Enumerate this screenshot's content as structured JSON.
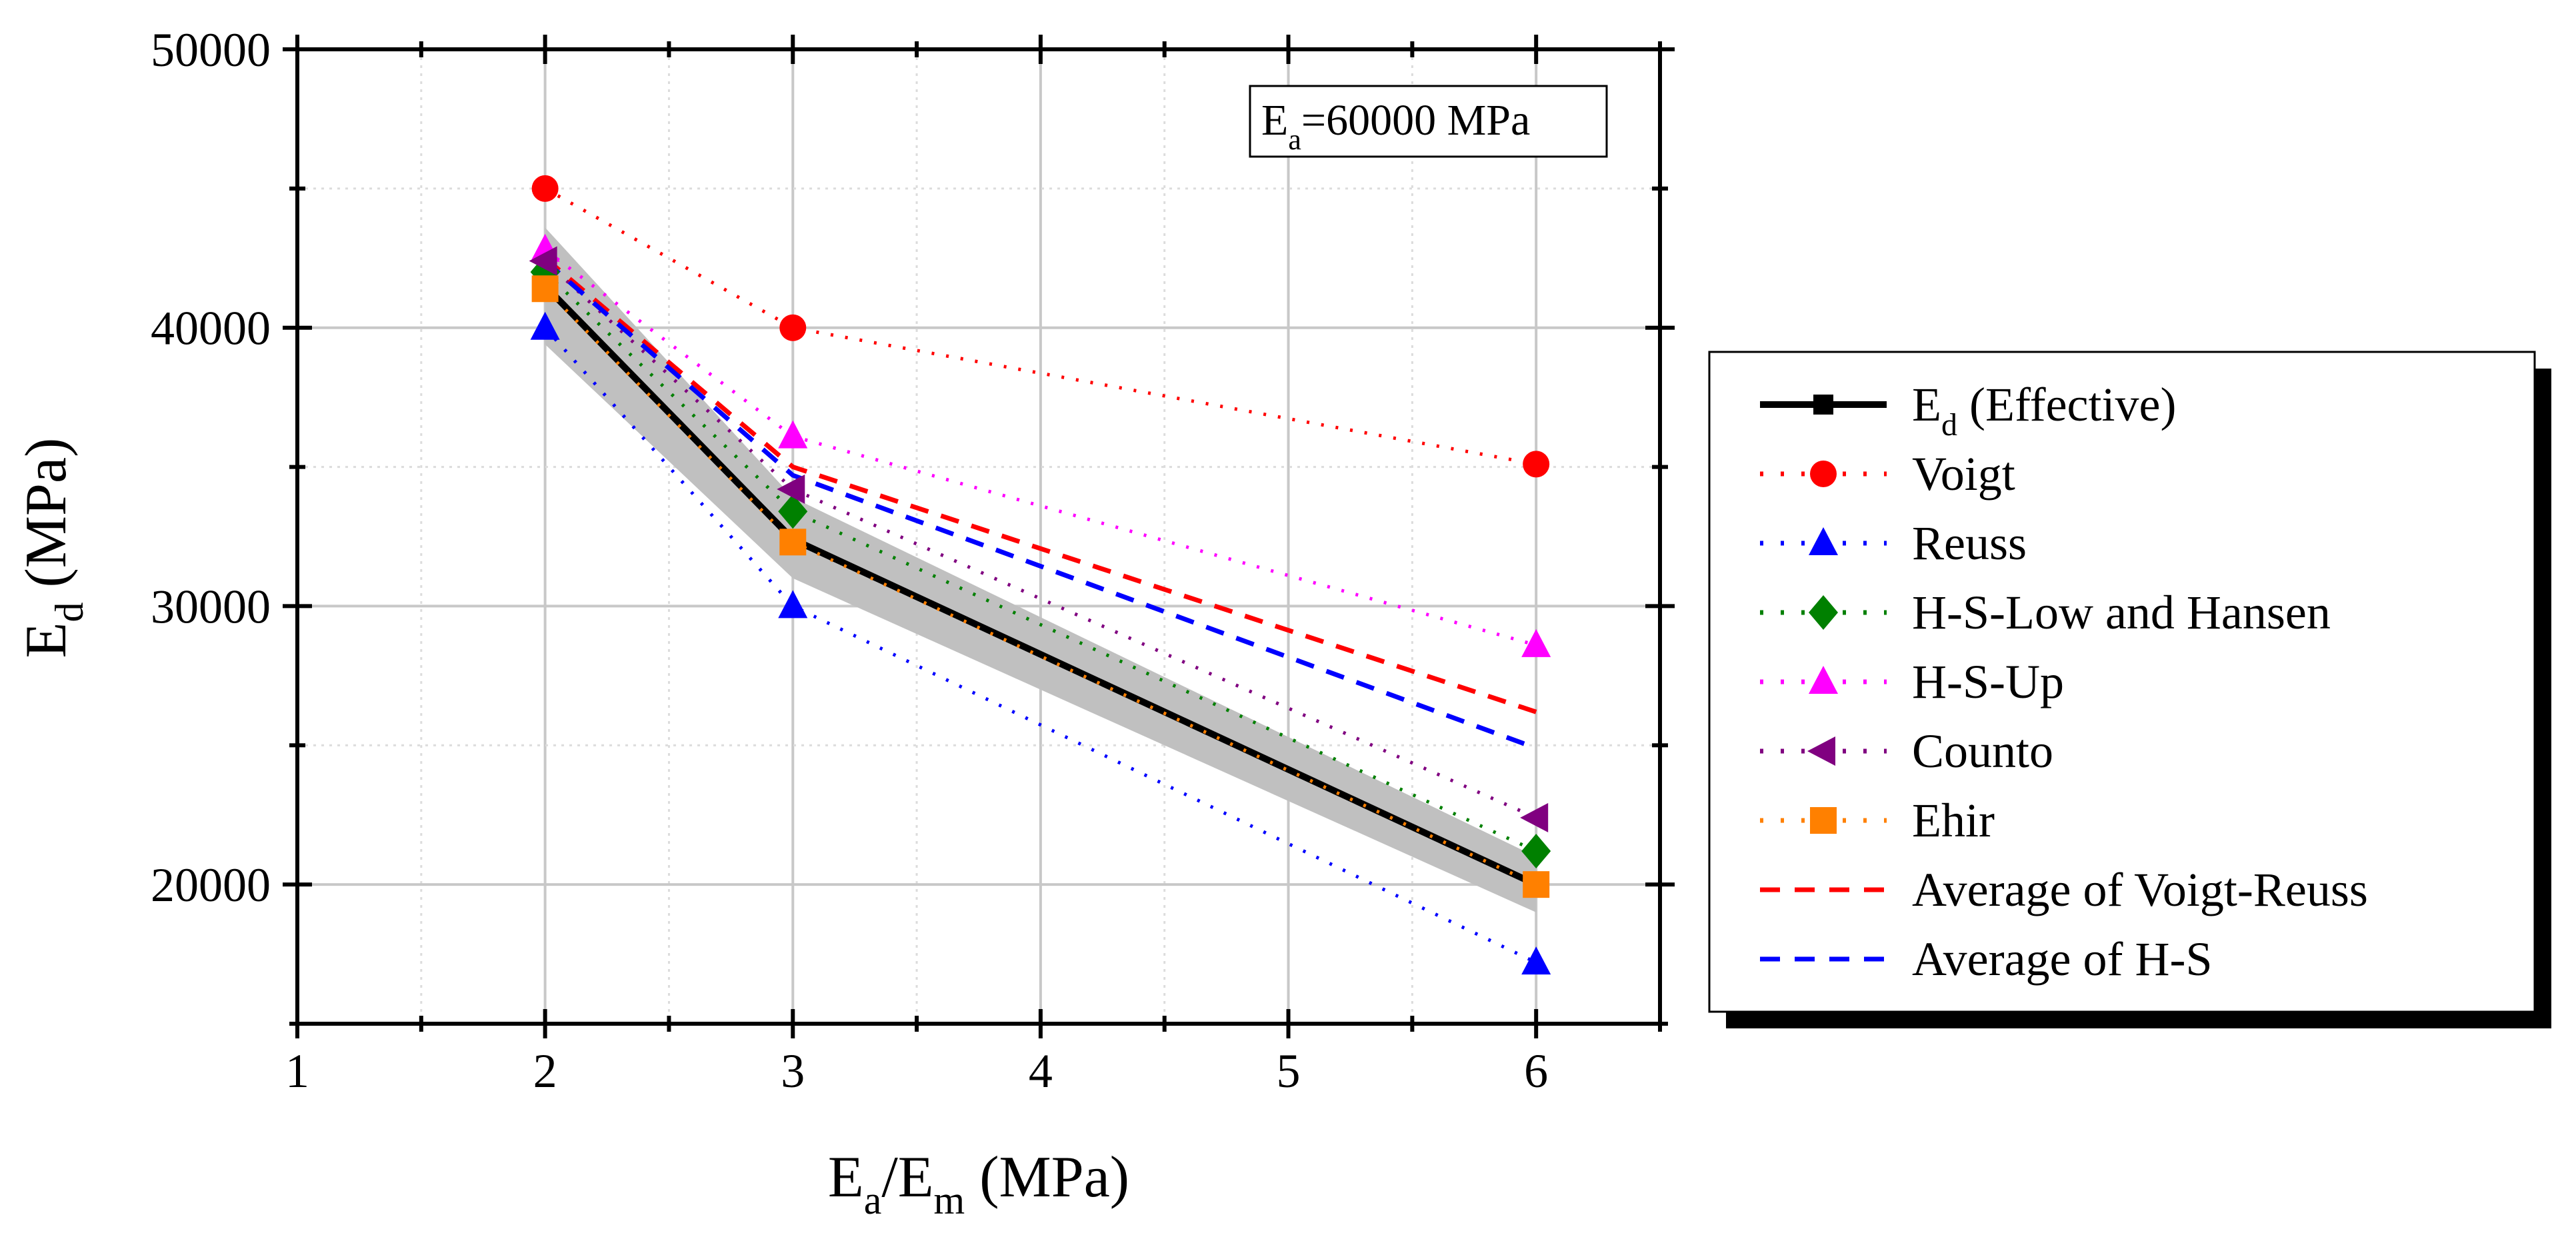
{
  "chart_data": {
    "type": "line",
    "title": "",
    "xlabel": {
      "main": "E",
      "sub1": "a",
      "mid": "/E",
      "sub2": "m",
      "unit": " (MPa)"
    },
    "ylabel": {
      "main": "E",
      "sub": "d",
      "unit": " (MPa)"
    },
    "xlim": [
      1,
      6.5
    ],
    "ylim": [
      15000,
      50000
    ],
    "xticks": [
      1,
      2,
      3,
      4,
      5,
      6
    ],
    "xtick_labels": [
      "1",
      "2",
      "3",
      "4",
      "5",
      "6"
    ],
    "yticks": [
      20000,
      30000,
      40000,
      50000
    ],
    "ytick_labels": [
      "20000",
      "30000",
      "40000",
      "50000"
    ],
    "grid": true,
    "legend_position": "outside-right",
    "annotation": {
      "main": "E",
      "sub": "a",
      "rest": "=60000 MPa"
    },
    "x": [
      2,
      3,
      6
    ],
    "band": {
      "name": "E_d (Effective) range",
      "color": "#c0c0c0",
      "upper": [
        43600,
        33900,
        21000
      ],
      "lower": [
        39400,
        31000,
        19000
      ]
    },
    "series": [
      {
        "name": "E",
        "name_sub": "d",
        "name_rest": " (Effective)",
        "values": [
          41500,
          32400,
          20000
        ],
        "color": "#000000",
        "style": "solid",
        "marker": "square"
      },
      {
        "name": "Voigt",
        "values": [
          45000,
          40000,
          35100
        ],
        "color": "#ff0000",
        "style": "dotted",
        "marker": "circle"
      },
      {
        "name": "Reuss",
        "values": [
          40000,
          30000,
          17200
        ],
        "color": "#0000ff",
        "style": "dotted",
        "marker": "triangle-up"
      },
      {
        "name": "H-S-Low and Hansen",
        "values": [
          42000,
          33400,
          21200
        ],
        "color": "#008000",
        "style": "dotted",
        "marker": "diamond"
      },
      {
        "name": "H-S-Up",
        "values": [
          42800,
          36100,
          28600
        ],
        "color": "#ff00ff",
        "style": "dotted",
        "marker": "triangle-up"
      },
      {
        "name": "Counto",
        "values": [
          42400,
          34200,
          22400
        ],
        "color": "#800080",
        "style": "dotted",
        "marker": "triangle-left"
      },
      {
        "name": "Ehir",
        "values": [
          41400,
          32300,
          20000
        ],
        "color": "#ff8000",
        "style": "dotted",
        "marker": "square"
      },
      {
        "name": "Average of Voigt-Reuss",
        "values": [
          42500,
          35000,
          26200
        ],
        "color": "#ff0000",
        "style": "dashed",
        "marker": "none"
      },
      {
        "name": "Average of H-S",
        "values": [
          42400,
          34700,
          24900
        ],
        "color": "#0000ff",
        "style": "dashed",
        "marker": "none"
      }
    ]
  }
}
